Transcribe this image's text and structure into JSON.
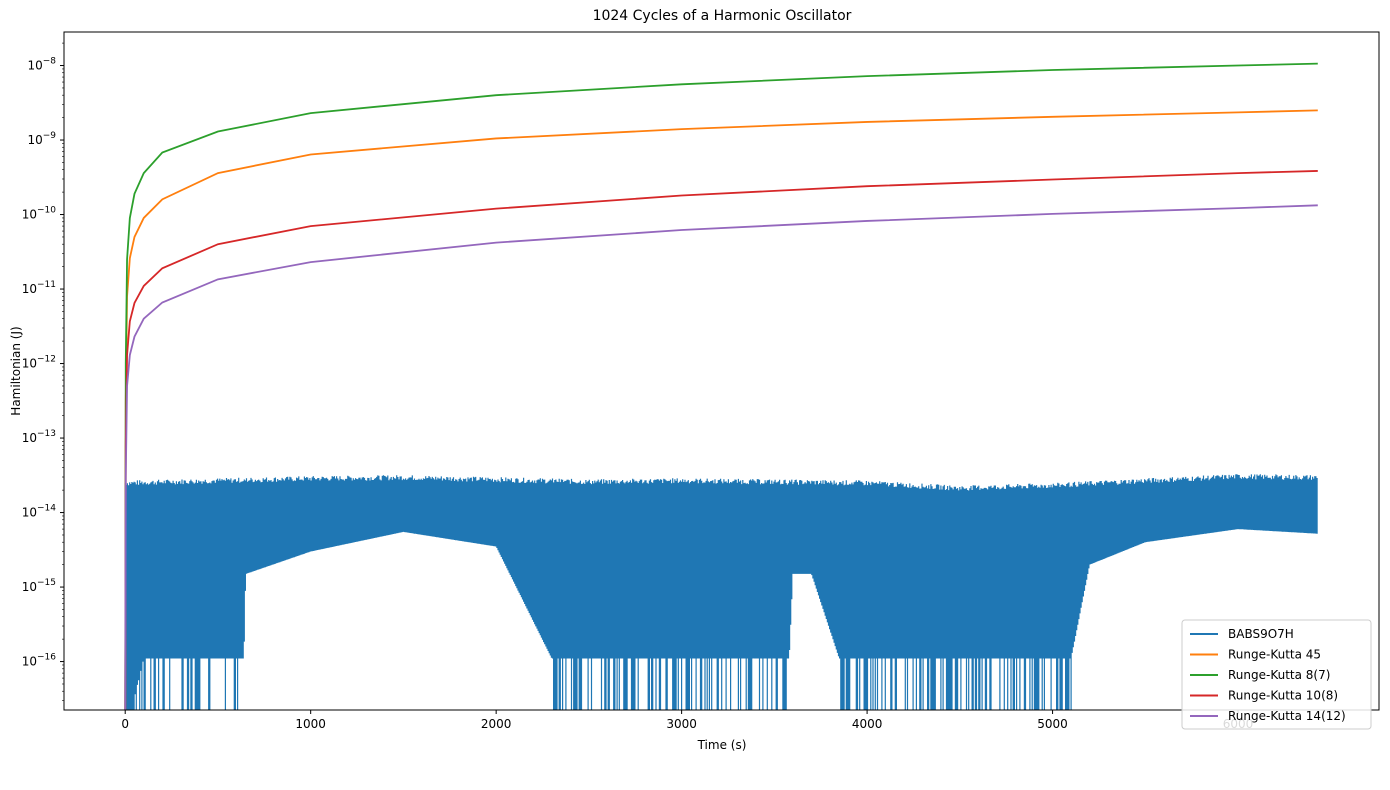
{
  "chart_data": {
    "type": "line",
    "title": "1024 Cycles of a Harmonic Oscillator",
    "xlabel": "Time (s)",
    "ylabel": "Hamiltonian (J)",
    "xlim": [
      -330,
      6760
    ],
    "ylim_log10": [
      -16.65,
      -7.55
    ],
    "y_scale": "log",
    "x_ticks": [
      0,
      1000,
      2000,
      3000,
      4000,
      5000,
      6000
    ],
    "x_tick_labels": [
      "0",
      "1000",
      "2000",
      "3000",
      "4000",
      "5000",
      "6000"
    ],
    "y_tick_exponents": [
      -16,
      -15,
      -14,
      -13,
      -12,
      -11,
      -10,
      -9,
      -8
    ],
    "grid": false,
    "legend_position": "lower right",
    "series": [
      {
        "name": "BABS9O7H",
        "color": "#1f77b4",
        "kind": "noisy-band",
        "upper_envelope": [
          [
            0,
            2.7e-14
          ],
          [
            500,
            2.9e-14
          ],
          [
            1000,
            3.1e-14
          ],
          [
            1500,
            3.2e-14
          ],
          [
            2000,
            3e-14
          ],
          [
            2500,
            2.8e-14
          ],
          [
            3000,
            2.9e-14
          ],
          [
            3500,
            2.8e-14
          ],
          [
            4000,
            2.7e-14
          ],
          [
            4500,
            2.3e-14
          ],
          [
            5000,
            2.5e-14
          ],
          [
            5500,
            2.9e-14
          ],
          [
            6000,
            3.3e-14
          ],
          [
            6430,
            3.2e-14
          ]
        ],
        "lower_envelope": [
          [
            0,
            1e-17
          ],
          [
            100,
            1.1e-16
          ],
          [
            640,
            1.1e-16
          ],
          [
            650,
            1.5e-15
          ],
          [
            1000,
            3e-15
          ],
          [
            1500,
            5.5e-15
          ],
          [
            2000,
            3.5e-15
          ],
          [
            2300,
            1.1e-16
          ],
          [
            3580,
            1.1e-16
          ],
          [
            3600,
            1.5e-15
          ],
          [
            3700,
            1.5e-15
          ],
          [
            3850,
            1.1e-16
          ],
          [
            5100,
            1.1e-16
          ],
          [
            5200,
            2e-15
          ],
          [
            5500,
            4e-15
          ],
          [
            6000,
            6e-15
          ],
          [
            6430,
            5.2e-15
          ]
        ]
      },
      {
        "name": "Runge-Kutta 45",
        "color": "#ff7f0e",
        "points": [
          [
            0,
            1e-17
          ],
          [
            3,
            3e-13
          ],
          [
            10,
            8e-12
          ],
          [
            25,
            2.6e-11
          ],
          [
            50,
            5e-11
          ],
          [
            100,
            9e-11
          ],
          [
            200,
            1.6e-10
          ],
          [
            500,
            3.6e-10
          ],
          [
            1000,
            6.4e-10
          ],
          [
            2000,
            1.05e-09
          ],
          [
            3000,
            1.4e-09
          ],
          [
            4000,
            1.75e-09
          ],
          [
            5000,
            2.05e-09
          ],
          [
            6000,
            2.35e-09
          ],
          [
            6430,
            2.5e-09
          ]
        ]
      },
      {
        "name": "Runge-Kutta 8(7)",
        "color": "#2ca02c",
        "points": [
          [
            0,
            1e-17
          ],
          [
            3,
            1e-12
          ],
          [
            10,
            2.5e-11
          ],
          [
            25,
            9e-11
          ],
          [
            50,
            1.9e-10
          ],
          [
            100,
            3.6e-10
          ],
          [
            200,
            6.8e-10
          ],
          [
            500,
            1.3e-09
          ],
          [
            1000,
            2.3e-09
          ],
          [
            2000,
            4e-09
          ],
          [
            3000,
            5.6e-09
          ],
          [
            4000,
            7.2e-09
          ],
          [
            5000,
            8.7e-09
          ],
          [
            6000,
            1e-08
          ],
          [
            6430,
            1.06e-08
          ]
        ]
      },
      {
        "name": "Runge-Kutta 10(8)",
        "color": "#d62728",
        "points": [
          [
            0,
            1e-17
          ],
          [
            3,
            8e-14
          ],
          [
            10,
            1.3e-12
          ],
          [
            25,
            3.7e-12
          ],
          [
            50,
            6.5e-12
          ],
          [
            100,
            1.1e-11
          ],
          [
            200,
            1.9e-11
          ],
          [
            500,
            4e-11
          ],
          [
            1000,
            7e-11
          ],
          [
            2000,
            1.2e-10
          ],
          [
            3000,
            1.8e-10
          ],
          [
            4000,
            2.4e-10
          ],
          [
            5000,
            2.95e-10
          ],
          [
            6000,
            3.6e-10
          ],
          [
            6430,
            3.85e-10
          ]
        ]
      },
      {
        "name": "Runge-Kutta 14(12)",
        "color": "#9467bd",
        "points": [
          [
            0,
            1e-17
          ],
          [
            3,
            3e-14
          ],
          [
            10,
            5e-13
          ],
          [
            25,
            1.3e-12
          ],
          [
            50,
            2.3e-12
          ],
          [
            100,
            4e-12
          ],
          [
            200,
            6.6e-12
          ],
          [
            500,
            1.35e-11
          ],
          [
            1000,
            2.3e-11
          ],
          [
            2000,
            4.2e-11
          ],
          [
            3000,
            6.2e-11
          ],
          [
            4000,
            8.2e-11
          ],
          [
            5000,
            1.02e-10
          ],
          [
            6000,
            1.22e-10
          ],
          [
            6430,
            1.33e-10
          ]
        ]
      }
    ]
  }
}
